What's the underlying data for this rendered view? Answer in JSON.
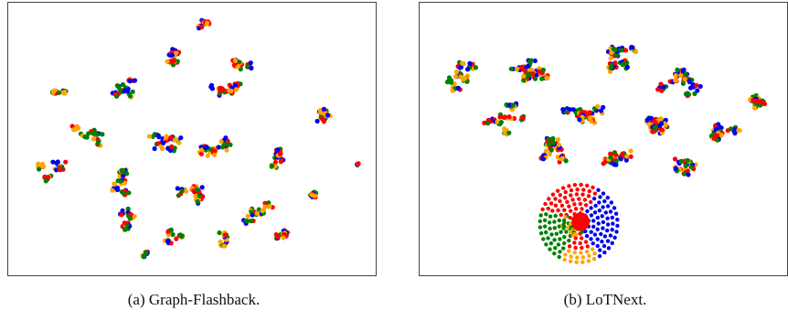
{
  "captions": {
    "a": "(a) Graph-Flashback.",
    "b": "(b) LoTNext."
  },
  "chart_data": [
    {
      "type": "scatter",
      "title": "",
      "caption": "(a) Graph-Flashback.",
      "xlabel": "",
      "ylabel": "",
      "axes_ticks": false,
      "grid": false,
      "legend": "none",
      "point_colors": [
        "#ff0000",
        "#0000ee",
        "#ffa500",
        "#008000"
      ],
      "description_points": "t-SNE embedding; many small mixed-colour clusters spread over the whole plot, no separated group",
      "clusters": [
        {
          "x": 0.53,
          "y": 0.95,
          "spread": 0.03,
          "n": 22
        },
        {
          "x": 0.45,
          "y": 0.82,
          "spread": 0.05,
          "n": 30
        },
        {
          "x": 0.63,
          "y": 0.8,
          "spread": 0.05,
          "n": 30
        },
        {
          "x": 0.33,
          "y": 0.7,
          "spread": 0.06,
          "n": 32
        },
        {
          "x": 0.6,
          "y": 0.7,
          "spread": 0.07,
          "n": 36
        },
        {
          "x": 0.12,
          "y": 0.68,
          "spread": 0.04,
          "n": 16
        },
        {
          "x": 0.88,
          "y": 0.58,
          "spread": 0.05,
          "n": 26
        },
        {
          "x": 0.42,
          "y": 0.5,
          "spread": 0.07,
          "n": 40
        },
        {
          "x": 0.58,
          "y": 0.45,
          "spread": 0.07,
          "n": 40
        },
        {
          "x": 0.22,
          "y": 0.52,
          "spread": 0.06,
          "n": 32
        },
        {
          "x": 0.1,
          "y": 0.38,
          "spread": 0.06,
          "n": 30
        },
        {
          "x": 0.3,
          "y": 0.35,
          "spread": 0.07,
          "n": 34
        },
        {
          "x": 0.74,
          "y": 0.42,
          "spread": 0.06,
          "n": 32
        },
        {
          "x": 0.84,
          "y": 0.28,
          "spread": 0.04,
          "n": 22
        },
        {
          "x": 0.97,
          "y": 0.4,
          "spread": 0.01,
          "n": 6
        },
        {
          "x": 0.5,
          "y": 0.28,
          "spread": 0.07,
          "n": 36
        },
        {
          "x": 0.68,
          "y": 0.22,
          "spread": 0.06,
          "n": 30
        },
        {
          "x": 0.32,
          "y": 0.18,
          "spread": 0.06,
          "n": 30
        },
        {
          "x": 0.45,
          "y": 0.12,
          "spread": 0.05,
          "n": 24
        },
        {
          "x": 0.6,
          "y": 0.12,
          "spread": 0.05,
          "n": 20
        },
        {
          "x": 0.74,
          "y": 0.12,
          "spread": 0.04,
          "n": 18
        },
        {
          "x": 0.36,
          "y": 0.05,
          "spread": 0.02,
          "n": 12
        }
      ]
    },
    {
      "type": "scatter",
      "title": "",
      "caption": "(b) LoTNext.",
      "xlabel": "",
      "ylabel": "",
      "axes_ticks": false,
      "grid": false,
      "legend": "none",
      "point_colors": [
        "#ff0000",
        "#0000ee",
        "#ffa500",
        "#008000"
      ],
      "description_points": "t-SNE embedding; broad mixed-colour cloud filling the upper part, plus one isolated dense radial cluster near the bottom centre",
      "clusters": [
        {
          "x": 0.1,
          "y": 0.75,
          "spread": 0.06,
          "n": 40
        },
        {
          "x": 0.3,
          "y": 0.78,
          "spread": 0.07,
          "n": 55
        },
        {
          "x": 0.55,
          "y": 0.82,
          "spread": 0.07,
          "n": 55
        },
        {
          "x": 0.72,
          "y": 0.72,
          "spread": 0.07,
          "n": 55
        },
        {
          "x": 0.92,
          "y": 0.65,
          "spread": 0.05,
          "n": 40
        },
        {
          "x": 0.22,
          "y": 0.58,
          "spread": 0.07,
          "n": 50
        },
        {
          "x": 0.45,
          "y": 0.6,
          "spread": 0.07,
          "n": 55
        },
        {
          "x": 0.65,
          "y": 0.55,
          "spread": 0.07,
          "n": 55
        },
        {
          "x": 0.85,
          "y": 0.52,
          "spread": 0.06,
          "n": 45
        },
        {
          "x": 0.35,
          "y": 0.45,
          "spread": 0.07,
          "n": 45
        },
        {
          "x": 0.55,
          "y": 0.42,
          "spread": 0.07,
          "n": 45
        },
        {
          "x": 0.72,
          "y": 0.4,
          "spread": 0.06,
          "n": 35
        }
      ],
      "radial_cluster": {
        "x": 0.43,
        "y": 0.17,
        "rings": 7,
        "core_color": "#ff0000"
      }
    }
  ]
}
